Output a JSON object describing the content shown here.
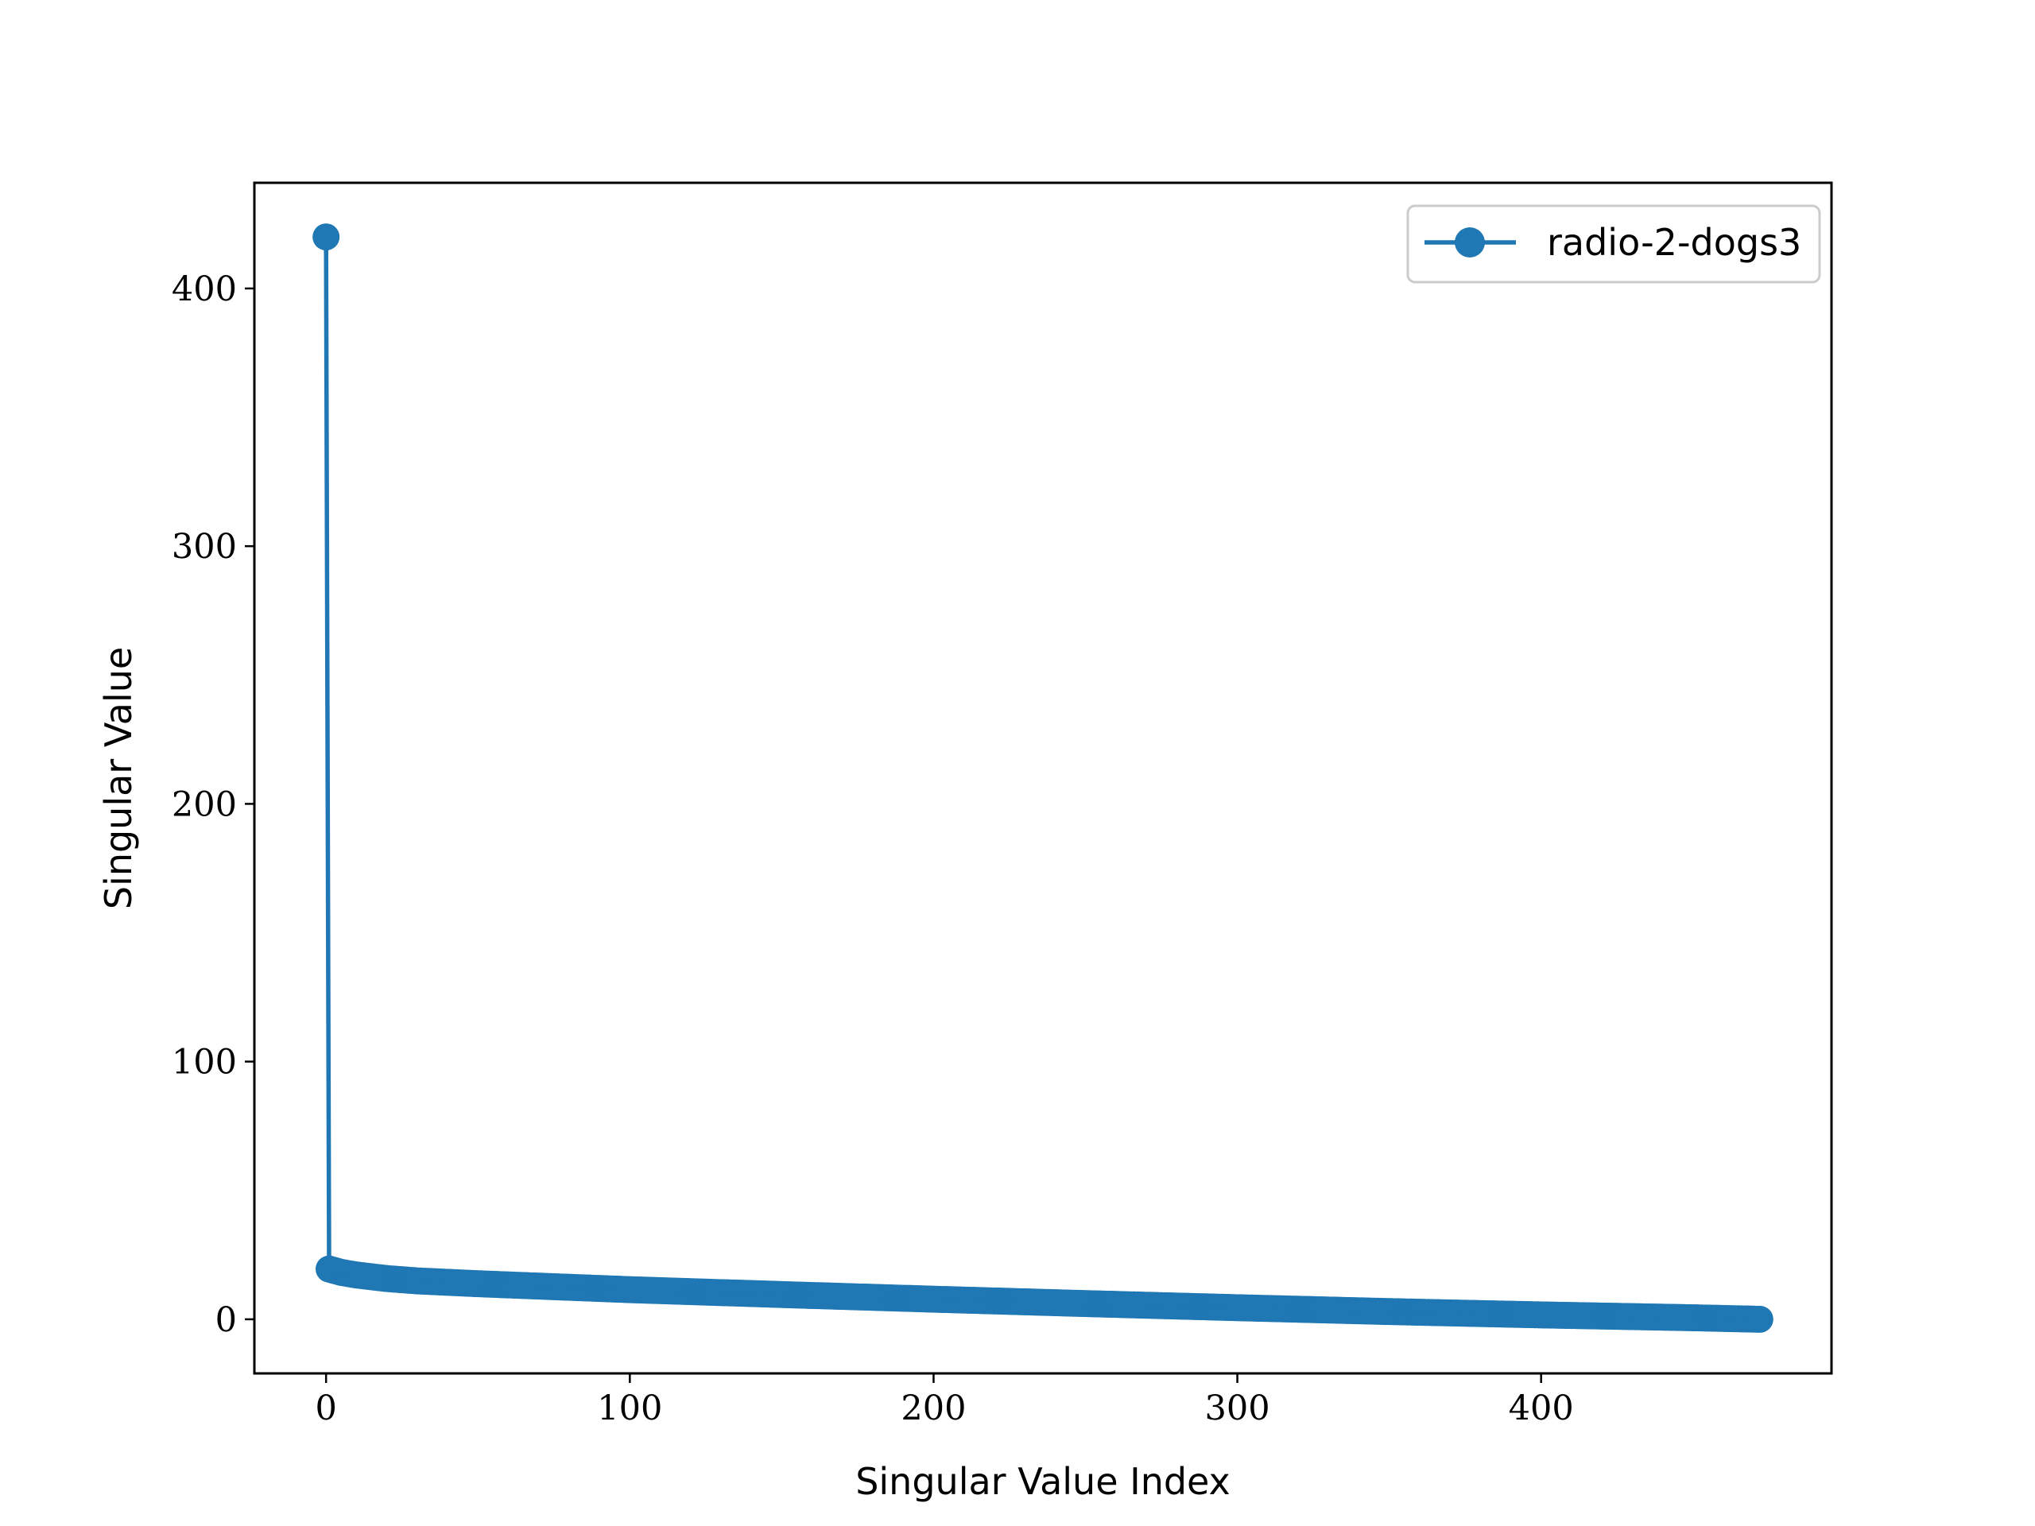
{
  "chart_data": {
    "type": "line",
    "title": "",
    "xlabel": "Singular Value Index",
    "ylabel": "Singular Value",
    "xlim": [
      -23.6,
      495.6
    ],
    "ylim": [
      -21,
      441
    ],
    "xticks": [
      0,
      100,
      200,
      300,
      400
    ],
    "yticks": [
      0,
      100,
      200,
      300,
      400
    ],
    "x_tick_labels": [
      "0",
      "100",
      "200",
      "300",
      "400"
    ],
    "y_tick_labels": [
      "0",
      "100",
      "200",
      "300",
      "400"
    ],
    "grid": false,
    "legend_position": "upper right",
    "series": [
      {
        "name": "radio-2-dogs3",
        "color": "#1f77b4",
        "marker": "circle",
        "n_points": 473,
        "key_points": [
          {
            "x": 0,
            "y": 420
          },
          {
            "x": 1,
            "y": 19.5
          },
          {
            "x": 5,
            "y": 18.2
          },
          {
            "x": 10,
            "y": 17.2
          },
          {
            "x": 20,
            "y": 15.8
          },
          {
            "x": 30,
            "y": 14.9
          },
          {
            "x": 50,
            "y": 13.8
          },
          {
            "x": 100,
            "y": 11.5
          },
          {
            "x": 150,
            "y": 9.6
          },
          {
            "x": 200,
            "y": 7.8
          },
          {
            "x": 250,
            "y": 6.1
          },
          {
            "x": 300,
            "y": 4.5
          },
          {
            "x": 350,
            "y": 3.0
          },
          {
            "x": 400,
            "y": 1.7
          },
          {
            "x": 450,
            "y": 0.6
          },
          {
            "x": 472,
            "y": 0.0
          }
        ]
      }
    ]
  }
}
